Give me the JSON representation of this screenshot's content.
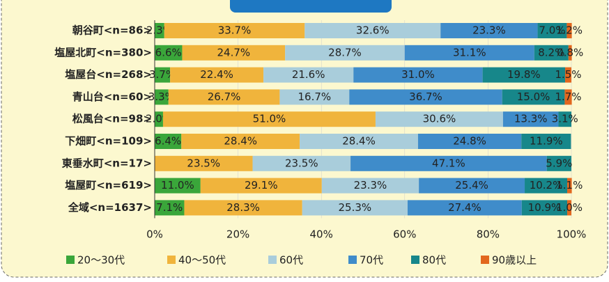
{
  "chart_data": {
    "type": "stacked_bar_horizontal",
    "categories": [
      "朝谷町<n=86>",
      "塩屋北町<n=380>",
      "塩屋台<n=268>",
      "青山台<n=60>",
      "松風台<n=98>",
      "下畑町<n=109>",
      "東垂水町<n=17>",
      "塩屋町<n=619>",
      "全域<n=1637>"
    ],
    "series": [
      {
        "name": "20～30代",
        "color": "#3aa63a",
        "values": [
          2.3,
          6.6,
          3.7,
          3.3,
          2.0,
          6.4,
          null,
          11.0,
          7.1
        ],
        "value_labels": [
          "2.3%",
          "6.6%",
          "3.7%",
          "3.3%",
          "2.0%",
          "6.4%",
          null,
          "11.0%",
          "7.1%"
        ]
      },
      {
        "name": "40～50代",
        "color": "#f0b43c",
        "values": [
          33.7,
          24.7,
          22.4,
          26.7,
          51.0,
          28.4,
          23.5,
          29.1,
          28.3
        ],
        "value_labels": [
          "33.7%",
          "24.7%",
          "22.4%",
          "26.7%",
          "51.0%",
          "28.4%",
          "23.5%",
          "29.1%",
          "28.3%"
        ]
      },
      {
        "name": "60代",
        "color": "#a9cddb",
        "values": [
          32.6,
          28.7,
          21.6,
          16.7,
          30.6,
          28.4,
          23.5,
          23.3,
          25.3
        ],
        "value_labels": [
          "32.6%",
          "28.7%",
          "21.6%",
          "16.7%",
          "30.6%",
          "28.4%",
          "23.5%",
          "23.3%",
          "25.3%"
        ]
      },
      {
        "name": "70代",
        "color": "#3f8cca",
        "values": [
          23.3,
          31.1,
          31.0,
          36.7,
          13.3,
          24.8,
          47.1,
          25.4,
          27.4
        ],
        "value_labels": [
          "23.3%",
          "31.1%",
          "31.0%",
          "36.7%",
          "13.3%",
          "24.8%",
          "47.1%",
          "25.4%",
          "27.4%"
        ]
      },
      {
        "name": "80代",
        "color": "#17878a",
        "values": [
          7.0,
          8.2,
          19.8,
          15.0,
          3.1,
          11.9,
          5.9,
          10.2,
          10.9
        ],
        "value_labels": [
          "7.0%",
          "8.2%",
          "19.8%",
          "15.0%",
          "3.1%",
          "11.9%",
          "5.9%",
          "10.2%",
          "10.9%"
        ]
      },
      {
        "name": "90歳以上",
        "color": "#e2671e",
        "values": [
          1.2,
          0.8,
          1.5,
          1.7,
          null,
          null,
          null,
          1.1,
          1.0
        ],
        "value_labels": [
          "1.2%",
          "0.8%",
          "1.5%",
          "1.7%",
          null,
          null,
          null,
          "1.1%",
          "1.0%"
        ]
      }
    ],
    "xlim": [
      0,
      100
    ],
    "xticks": [
      {
        "value": 0,
        "label": "0%"
      },
      {
        "value": 20,
        "label": "20%"
      },
      {
        "value": 40,
        "label": "40%"
      },
      {
        "value": 60,
        "label": "60%"
      },
      {
        "value": 80,
        "label": "80%"
      },
      {
        "value": 100,
        "label": "100%"
      }
    ],
    "legend": "bottom"
  }
}
